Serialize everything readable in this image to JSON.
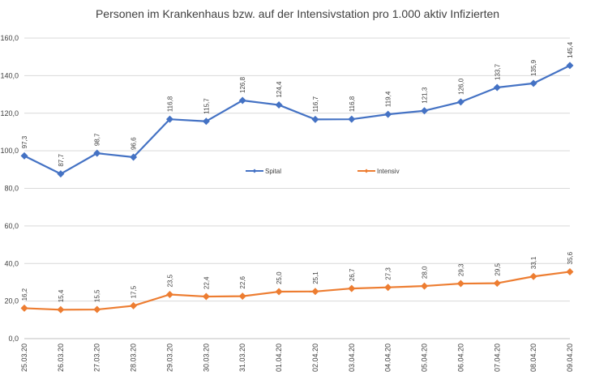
{
  "chart_data": {
    "type": "line",
    "title": "Personen im Krankenhaus bzw. auf der Intensivstation pro 1.000 aktiv Infizierten",
    "categories": [
      "25.03.20",
      "26.03.20",
      "27.03.20",
      "28.03.20",
      "29.03.20",
      "30.03.20",
      "31.03.20",
      "01.04.20",
      "02.04.20",
      "03.04.20",
      "04.04.20",
      "05.04.20",
      "06.04.20",
      "07.04.20",
      "08.04.20",
      "09.04.20"
    ],
    "ylim": [
      0,
      160
    ],
    "yticks": [
      0,
      20,
      40,
      60,
      80,
      100,
      120,
      140,
      160
    ],
    "ytick_labels": [
      "0,0",
      "20,0",
      "40,0",
      "60,0",
      "80,0",
      "100,0",
      "120,0",
      "140,0",
      "160,0"
    ],
    "grid": true,
    "legend_position": "center",
    "series": [
      {
        "name": "Spital",
        "color": "#4472C4",
        "marker": "diamond",
        "values": [
          97.3,
          87.7,
          98.7,
          96.6,
          116.8,
          115.7,
          126.8,
          124.4,
          116.7,
          116.8,
          119.4,
          121.3,
          126.0,
          133.7,
          135.9,
          145.4
        ],
        "labels": [
          "97,3",
          "87,7",
          "98,7",
          "96,6",
          "116,8",
          "115,7",
          "126,8",
          "124,4",
          "116,7",
          "116,8",
          "119,4",
          "121,3",
          "126,0",
          "133,7",
          "135,9",
          "145,4"
        ]
      },
      {
        "name": "Intensiv",
        "color": "#ED7D31",
        "marker": "diamond",
        "values": [
          16.2,
          15.4,
          15.5,
          17.5,
          23.5,
          22.4,
          22.6,
          25.0,
          25.1,
          26.7,
          27.3,
          28.0,
          29.3,
          29.5,
          33.1,
          35.6
        ],
        "labels": [
          "16,2",
          "15,4",
          "15,5",
          "17,5",
          "23,5",
          "22,4",
          "22,6",
          "25,0",
          "25,1",
          "26,7",
          "27,3",
          "28,0",
          "29,3",
          "29,5",
          "33,1",
          "35,6"
        ]
      }
    ]
  }
}
